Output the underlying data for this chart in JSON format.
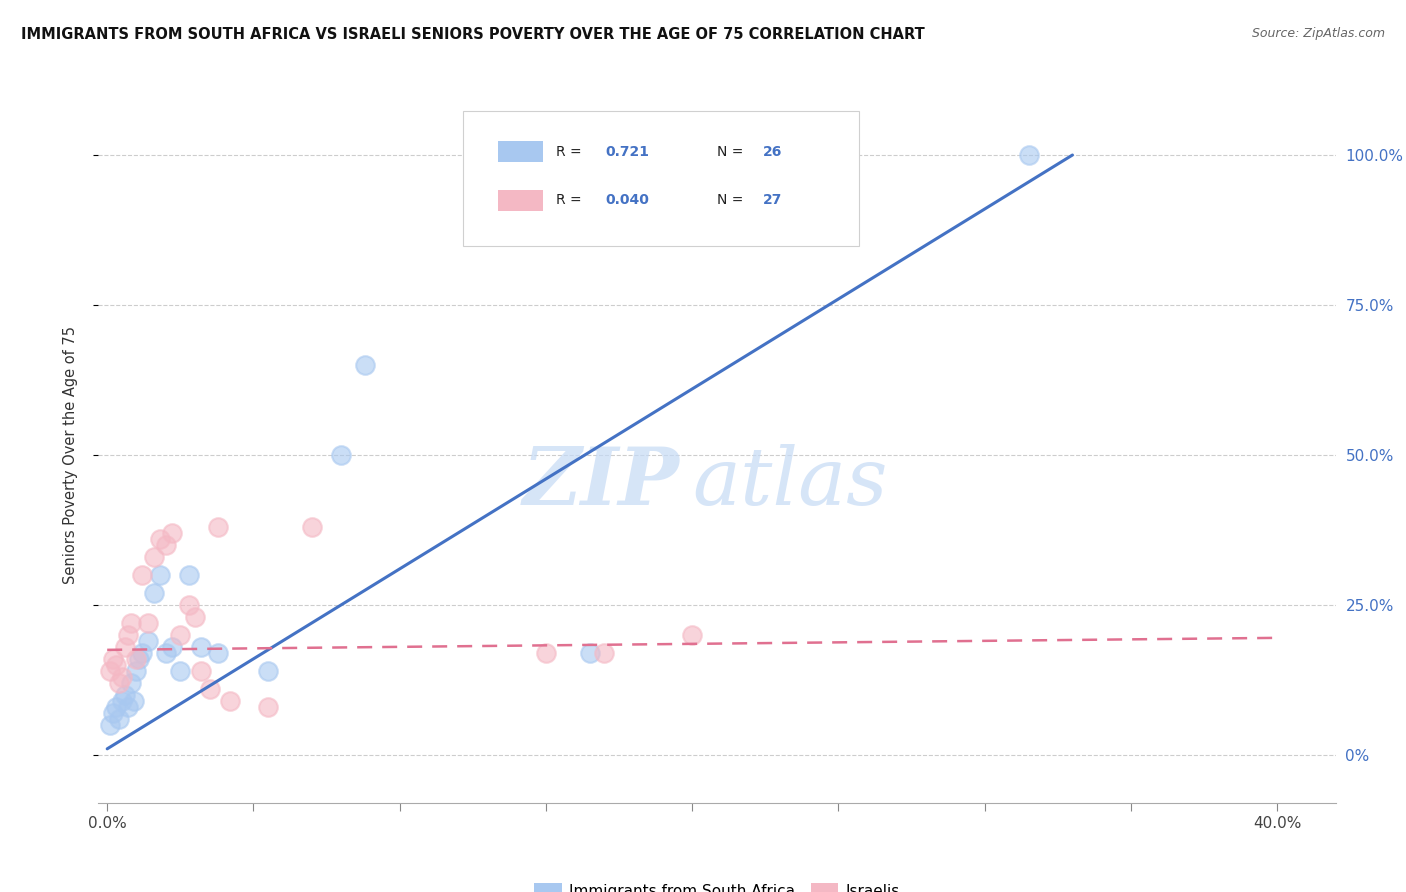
{
  "title": "IMMIGRANTS FROM SOUTH AFRICA VS ISRAELI SENIORS POVERTY OVER THE AGE OF 75 CORRELATION CHART",
  "source": "Source: ZipAtlas.com",
  "xlabel_vals": [
    0.0,
    5.0,
    10.0,
    15.0,
    20.0,
    25.0,
    30.0,
    35.0,
    40.0
  ],
  "xlabel_labels": [
    "0.0%",
    "",
    "",
    "",
    "",
    "",
    "",
    "",
    "40.0%"
  ],
  "ylabel": "Seniors Poverty Over the Age of 75",
  "ylabel_vals": [
    0,
    25,
    50,
    75,
    100
  ],
  "ylabel_labels": [
    "0%",
    "25.0%",
    "50.0%",
    "75.0%",
    "100.0%"
  ],
  "blue_R": 0.721,
  "blue_N": 26,
  "pink_R": 0.04,
  "pink_N": 27,
  "blue_color": "#a8c8f0",
  "pink_color": "#f4b8c4",
  "blue_line_color": "#4472c4",
  "pink_line_color": "#e07090",
  "watermark_zip": "ZIP",
  "watermark_atlas": "atlas",
  "legend_label_blue": "Immigrants from South Africa",
  "legend_label_pink": "Israelis",
  "blue_scatter_x": [
    0.1,
    0.2,
    0.3,
    0.4,
    0.5,
    0.6,
    0.7,
    0.8,
    0.9,
    1.0,
    1.1,
    1.2,
    1.4,
    1.6,
    1.8,
    2.0,
    2.2,
    2.5,
    2.8,
    3.2,
    3.8,
    5.5,
    8.0,
    8.8,
    16.5,
    31.5
  ],
  "blue_scatter_y": [
    5,
    7,
    8,
    6,
    9,
    10,
    8,
    12,
    9,
    14,
    16,
    17,
    19,
    27,
    30,
    17,
    18,
    14,
    30,
    18,
    17,
    14,
    50,
    65,
    17,
    100
  ],
  "pink_scatter_x": [
    0.1,
    0.2,
    0.3,
    0.4,
    0.5,
    0.6,
    0.7,
    0.8,
    1.0,
    1.2,
    1.4,
    1.6,
    1.8,
    2.0,
    2.2,
    2.5,
    2.8,
    3.0,
    3.2,
    3.5,
    3.8,
    4.2,
    5.5,
    7.0,
    15.0,
    17.0,
    20.0
  ],
  "pink_scatter_y": [
    14,
    16,
    15,
    12,
    13,
    18,
    20,
    22,
    16,
    30,
    22,
    33,
    36,
    35,
    37,
    20,
    25,
    23,
    14,
    11,
    38,
    9,
    8,
    38,
    17,
    17,
    20
  ],
  "blue_line_x0": 0.0,
  "blue_line_y0": 1.0,
  "blue_line_x1": 33.0,
  "blue_line_y1": 100.0,
  "pink_line_x0": 0.0,
  "pink_line_y0": 17.5,
  "pink_line_x1": 40.0,
  "pink_line_y1": 19.5,
  "bg_color": "#ffffff",
  "grid_color": "#c8c8c8",
  "right_axis_color": "#4472c4",
  "xlim_min": -0.3,
  "xlim_max": 42.0,
  "ylim_min": -8,
  "ylim_max": 108
}
